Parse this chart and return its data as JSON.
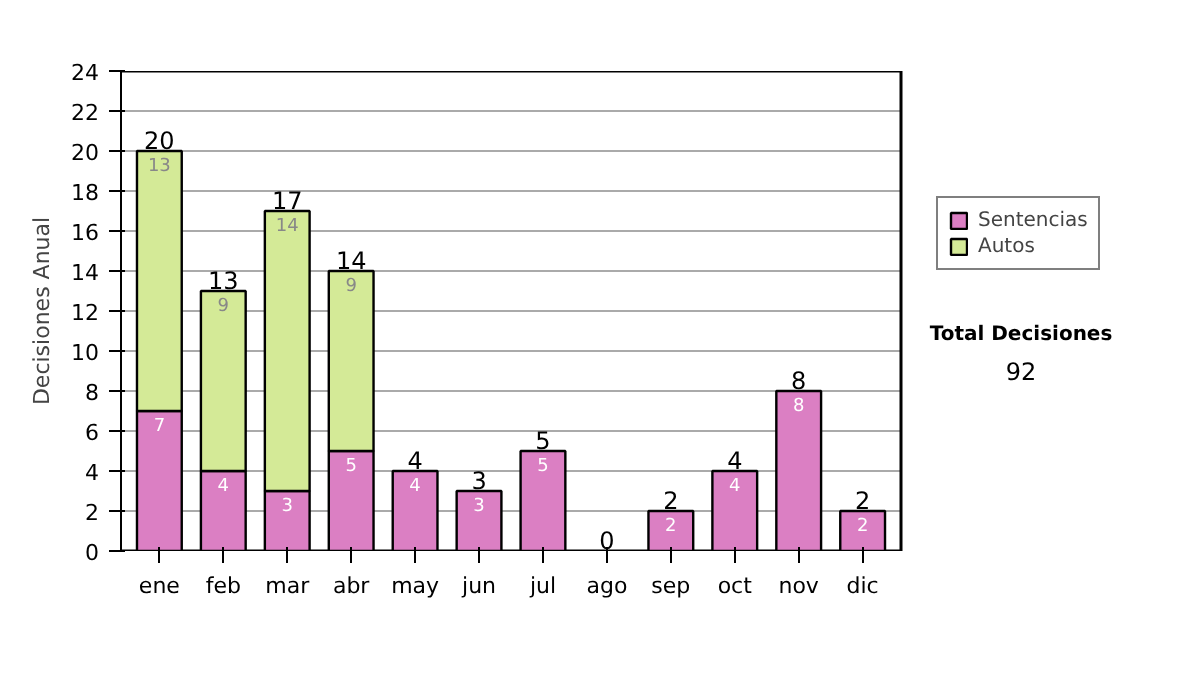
{
  "chart_data": {
    "type": "bar",
    "stacked": true,
    "ylabel": "Decisiones Anual",
    "categories": [
      "ene",
      "feb",
      "mar",
      "abr",
      "may",
      "jun",
      "jul",
      "ago",
      "sep",
      "oct",
      "nov",
      "dic"
    ],
    "series": [
      {
        "name": "Sentencias",
        "color": "#db7fc3",
        "values": [
          7,
          4,
          3,
          5,
          4,
          3,
          5,
          0,
          2,
          4,
          8,
          2
        ],
        "value_labels": [
          "7",
          "4",
          "3",
          "5",
          "4",
          "3",
          "5",
          null,
          "2",
          "4",
          "8",
          "2"
        ]
      },
      {
        "name": "Autos",
        "color": "#d4ea97",
        "values": [
          13,
          9,
          14,
          9,
          0,
          0,
          0,
          0,
          0,
          0,
          0,
          0
        ],
        "value_labels": [
          "13",
          "9",
          "14",
          "9",
          null,
          null,
          null,
          null,
          null,
          null,
          null,
          null
        ]
      }
    ],
    "totals": [
      "20",
      "13",
      "17",
      "14",
      "4",
      "3",
      "5",
      "0",
      "2",
      "4",
      "8",
      "2"
    ],
    "ylim": [
      0,
      24
    ],
    "yticks": [
      0,
      2,
      4,
      6,
      8,
      10,
      12,
      14,
      16,
      18,
      20,
      22,
      24
    ],
    "grid": "y",
    "legend": "right",
    "annotations": [
      "Total Decisiones",
      "92"
    ]
  }
}
